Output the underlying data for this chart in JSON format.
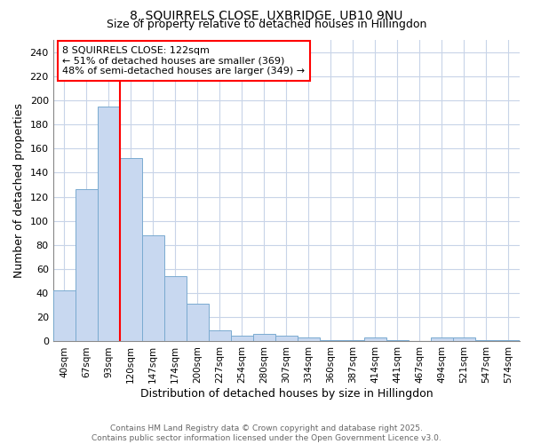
{
  "title": "8, SQUIRRELS CLOSE, UXBRIDGE, UB10 9NU",
  "subtitle": "Size of property relative to detached houses in Hillingdon",
  "xlabel": "Distribution of detached houses by size in Hillingdon",
  "ylabel": "Number of detached properties",
  "categories": [
    "40sqm",
    "67sqm",
    "93sqm",
    "120sqm",
    "147sqm",
    "174sqm",
    "200sqm",
    "227sqm",
    "254sqm",
    "280sqm",
    "307sqm",
    "334sqm",
    "360sqm",
    "387sqm",
    "414sqm",
    "441sqm",
    "467sqm",
    "494sqm",
    "521sqm",
    "547sqm",
    "574sqm"
  ],
  "values": [
    42,
    126,
    195,
    152,
    88,
    54,
    31,
    9,
    5,
    6,
    5,
    3,
    1,
    1,
    3,
    1,
    0,
    3,
    3,
    1,
    1
  ],
  "bar_color": "#c8d8f0",
  "bar_edgecolor": "#7aaad0",
  "redline_index": 3,
  "annotation_title": "8 SQUIRRELS CLOSE: 122sqm",
  "annotation_line1": "← 51% of detached houses are smaller (369)",
  "annotation_line2": "48% of semi-detached houses are larger (349) →",
  "ylim": [
    0,
    250
  ],
  "yticks": [
    0,
    20,
    40,
    60,
    80,
    100,
    120,
    140,
    160,
    180,
    200,
    220,
    240
  ],
  "footer1": "Contains HM Land Registry data © Crown copyright and database right 2025.",
  "footer2": "Contains public sector information licensed under the Open Government Licence v3.0.",
  "background_color": "#ffffff",
  "grid_color": "#c8d4e8"
}
